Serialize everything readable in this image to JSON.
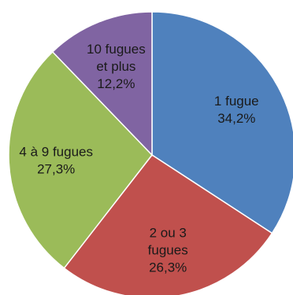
{
  "chart_data": {
    "type": "pie",
    "title": "",
    "start": "top",
    "direction": "clockwise",
    "slices": [
      {
        "label_lines": [
          "1 fugue"
        ],
        "pct_text": "34,2%",
        "value": 34.2,
        "color": "#4F81BD"
      },
      {
        "label_lines": [
          "2 ou 3",
          "fugues"
        ],
        "pct_text": "26,3%",
        "value": 26.3,
        "color": "#C0504D"
      },
      {
        "label_lines": [
          "4 à 9 fugues"
        ],
        "pct_text": "27,3%",
        "value": 27.3,
        "color": "#9BBB59"
      },
      {
        "label_lines": [
          "10 fugues",
          "et plus"
        ],
        "pct_text": "12,2%",
        "value": 12.2,
        "color": "#8064A2"
      }
    ]
  }
}
